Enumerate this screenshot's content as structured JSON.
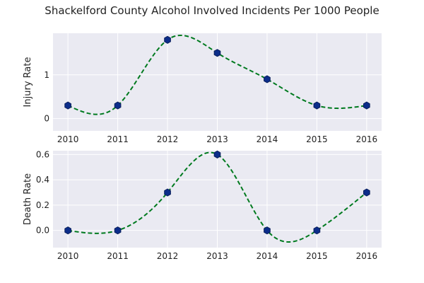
{
  "figure": {
    "title": "Shackelford County Alcohol Involved Incidents Per 1000 People"
  },
  "chart_data": [
    {
      "type": "line",
      "title": "",
      "xlabel": "",
      "ylabel": "Injury Rate",
      "x": [
        2010,
        2011,
        2012,
        2013,
        2014,
        2015,
        2016
      ],
      "series": [
        {
          "name": "",
          "values": [
            0.3,
            0.3,
            1.8,
            1.5,
            0.9,
            0.3,
            0.3
          ]
        }
      ],
      "xlim": [
        2009.7,
        2016.3
      ],
      "ylim": [
        -0.28,
        1.95
      ],
      "yticks": [
        0,
        1
      ],
      "xticks": [
        2010,
        2011,
        2012,
        2013,
        2014,
        2015,
        2016
      ],
      "line_style": "dashed smooth curve",
      "line_color": "#007a1f",
      "marker": "hexagon",
      "marker_color": "#0c2d8a",
      "grid": true,
      "legend": "none"
    },
    {
      "type": "line",
      "title": "",
      "xlabel": "",
      "ylabel": "Death Rate",
      "x": [
        2010,
        2011,
        2012,
        2013,
        2014,
        2015,
        2016
      ],
      "series": [
        {
          "name": "",
          "values": [
            0.0,
            0.0,
            0.3,
            0.6,
            0.0,
            0.0,
            0.3
          ]
        }
      ],
      "xlim": [
        2009.7,
        2016.3
      ],
      "ylim": [
        -0.136,
        0.63
      ],
      "yticks": [
        0.0,
        0.2,
        0.4,
        0.6
      ],
      "ytick_labels": [
        "0.0",
        "0.2",
        "0.4",
        "0.6"
      ],
      "xticks": [
        2010,
        2011,
        2012,
        2013,
        2014,
        2015,
        2016
      ],
      "line_style": "dashed smooth curve",
      "line_color": "#007a1f",
      "marker": "hexagon",
      "marker_color": "#0c2d8a",
      "grid": true,
      "legend": "none"
    }
  ]
}
